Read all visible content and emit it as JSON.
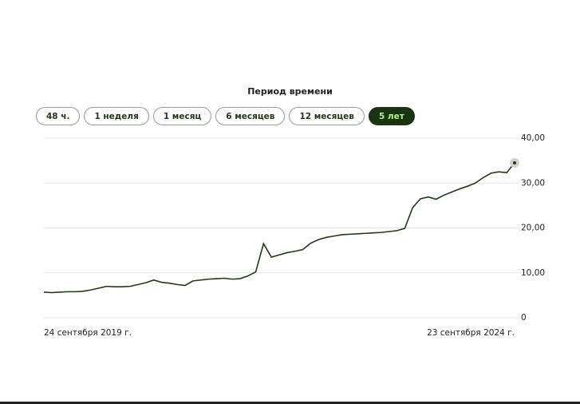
{
  "period_selector": {
    "label": "Период времени",
    "options": [
      "48 ч.",
      "1 неделя",
      "1 месяц",
      "6 месяцев",
      "12 месяцев",
      "5 лет"
    ],
    "selected": 5
  },
  "chart_data": {
    "type": "line",
    "color": "#1f3a15",
    "grid": true,
    "y_axis_side": "right",
    "categories": [
      "24 сентября 2019 г.",
      null,
      null,
      null,
      null,
      null,
      null,
      null,
      null,
      null,
      null,
      null,
      null,
      null,
      null,
      null,
      null,
      null,
      null,
      null,
      null,
      null,
      null,
      null,
      null,
      null,
      null,
      null,
      null,
      null,
      null,
      null,
      null,
      null,
      null,
      null,
      null,
      null,
      null,
      null,
      null,
      null,
      null,
      null,
      null,
      null,
      null,
      null,
      null,
      null,
      null,
      null,
      null,
      null,
      null,
      null,
      null,
      null,
      null,
      null,
      "23 сентября 2024 г."
    ],
    "values": [
      5.7,
      5.6,
      5.7,
      5.8,
      5.8,
      5.9,
      6.2,
      6.6,
      7.0,
      6.9,
      6.9,
      7.0,
      7.4,
      7.8,
      8.4,
      7.9,
      7.7,
      7.4,
      7.2,
      8.2,
      8.4,
      8.6,
      8.7,
      8.8,
      8.6,
      8.7,
      9.3,
      10.2,
      16.5,
      13.5,
      14.0,
      14.5,
      14.8,
      15.2,
      16.6,
      17.4,
      17.9,
      18.2,
      18.5,
      18.6,
      18.7,
      18.8,
      18.9,
      19.0,
      19.2,
      19.4,
      19.9,
      24.5,
      26.5,
      26.9,
      26.4,
      27.3,
      28.0,
      28.7,
      29.3,
      30.0,
      31.2,
      32.2,
      32.5,
      32.3,
      34.5
    ],
    "ylim": [
      0,
      40
    ],
    "yticks": [
      0,
      {
        "value": 10,
        "label": "10,00"
      },
      {
        "value": 20,
        "label": "20,00"
      },
      {
        "value": 30,
        "label": "30,00"
      },
      {
        "value": 40,
        "label": "40,00"
      }
    ]
  }
}
